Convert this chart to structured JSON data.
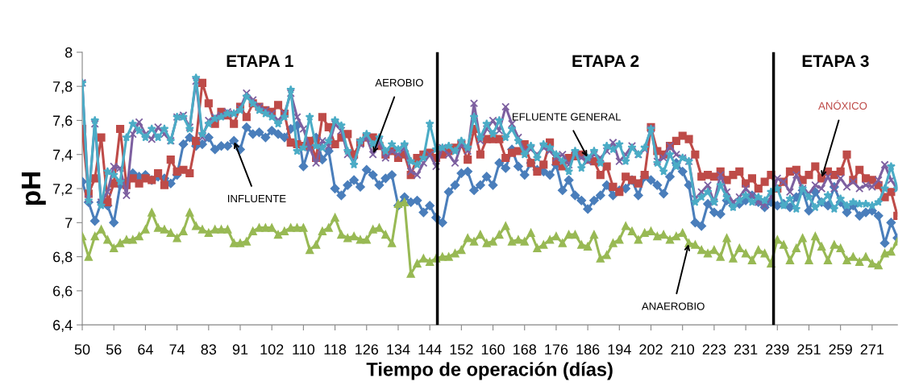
{
  "chart_data": {
    "type": "line",
    "xlabel": "Tiempo de operación (días)",
    "ylabel": "pH",
    "categories": [
      "50",
      null,
      null,
      null,
      null,
      "56",
      null,
      null,
      null,
      null,
      "64",
      null,
      null,
      null,
      null,
      "74",
      null,
      null,
      null,
      null,
      "83",
      null,
      null,
      null,
      null,
      "91",
      null,
      null,
      null,
      null,
      "102",
      null,
      null,
      null,
      null,
      "110",
      null,
      null,
      null,
      null,
      "118",
      null,
      null,
      null,
      null,
      "126",
      null,
      null,
      null,
      null,
      "134",
      null,
      null,
      null,
      null,
      "144",
      null,
      null,
      null,
      null,
      "152",
      null,
      null,
      null,
      null,
      "160",
      null,
      null,
      null,
      null,
      "168",
      null,
      null,
      null,
      null,
      "176",
      null,
      null,
      null,
      null,
      "186",
      null,
      null,
      null,
      null,
      "194",
      null,
      null,
      null,
      null,
      "202",
      null,
      null,
      null,
      null,
      "210",
      null,
      null,
      null,
      null,
      "223",
      null,
      null,
      null,
      null,
      "231",
      null,
      null,
      null,
      null,
      "239",
      null,
      null,
      null,
      null,
      "251",
      null,
      null,
      null,
      null,
      "259",
      null,
      null,
      null,
      null,
      "271",
      null,
      null,
      null,
      null
    ],
    "ylim": [
      6.4,
      8
    ],
    "yticks": [
      {
        "value": 6.4,
        "label": "6,4"
      },
      {
        "value": 6.6,
        "label": "6,6"
      },
      {
        "value": 6.8,
        "label": "6,8"
      },
      {
        "value": 7,
        "label": "7"
      },
      {
        "value": 7.2,
        "label": "7,2"
      },
      {
        "value": 7.4,
        "label": "7,4"
      },
      {
        "value": 7.6,
        "label": "7,6"
      },
      {
        "value": 7.8,
        "label": "7,8"
      },
      {
        "value": 8,
        "label": "8"
      }
    ],
    "grid": false,
    "legend": false,
    "series": [
      {
        "name": "INFLUENTE",
        "color": "#4a7ebb",
        "marker": "diamond",
        "values": [
          7.24,
          7.12,
          7.01,
          7.12,
          7.1,
          7.0,
          7.22,
          7.24,
          7.29,
          7.27,
          7.28,
          7.25,
          7.27,
          7.26,
          7.23,
          7.28,
          7.46,
          7.5,
          7.45,
          7.46,
          7.5,
          7.43,
          7.45,
          7.45,
          7.48,
          7.43,
          7.56,
          7.52,
          7.53,
          7.5,
          7.54,
          7.52,
          7.5,
          7.55,
          7.57,
          7.33,
          7.45,
          7.5,
          7.37,
          7.42,
          7.2,
          7.16,
          7.22,
          7.25,
          7.21,
          7.31,
          7.28,
          7.22,
          7.26,
          7.28,
          7.1,
          7.15,
          7.12,
          7.13,
          7.06,
          7.1,
          7.03,
          7.0,
          7.18,
          7.22,
          7.29,
          7.3,
          7.19,
          7.22,
          7.27,
          7.22,
          7.35,
          7.32,
          7.43,
          7.33,
          7.28,
          7.35,
          7.31,
          7.3,
          7.28,
          7.34,
          7.19,
          7.25,
          7.16,
          7.13,
          7.08,
          7.13,
          7.16,
          7.22,
          7.16,
          7.19,
          7.2,
          7.25,
          7.16,
          7.27,
          7.25,
          7.22,
          7.17,
          7.27,
          7.35,
          7.3,
          7.22,
          7.0,
          6.98,
          7.11,
          7.06,
          7.05,
          7.13,
          7.1,
          7.11,
          7.13,
          7.16,
          7.12,
          7.09,
          7.12,
          7.1,
          7.11,
          7.09,
          7.15,
          7.19,
          7.07,
          7.18,
          7.12,
          7.1,
          7.21,
          7.12,
          7.06,
          7.1,
          7.04,
          7.06,
          7.07,
          7.04,
          6.88,
          7.0,
          6.91
        ]
      },
      {
        "name": "ANÓXICO",
        "color": "#be4b48",
        "marker": "square",
        "values": [
          7.55,
          7.17,
          7.26,
          7.5,
          7.12,
          7.23,
          7.55,
          7.22,
          7.26,
          7.23,
          7.26,
          7.25,
          7.29,
          7.22,
          7.37,
          7.3,
          7.31,
          7.29,
          7.48,
          7.82,
          7.7,
          7.58,
          7.65,
          7.63,
          7.58,
          7.68,
          7.62,
          7.7,
          7.68,
          7.66,
          7.65,
          7.69,
          7.64,
          7.47,
          7.46,
          7.45,
          7.48,
          7.38,
          7.62,
          7.56,
          7.46,
          7.5,
          7.52,
          7.4,
          7.47,
          7.5,
          7.5,
          7.45,
          7.4,
          7.42,
          7.38,
          7.4,
          7.28,
          7.38,
          7.4,
          7.41,
          7.38,
          7.4,
          7.42,
          7.44,
          7.46,
          7.37,
          7.55,
          7.4,
          7.49,
          7.49,
          7.49,
          7.38,
          7.41,
          7.42,
          7.46,
          7.35,
          7.3,
          7.34,
          7.47,
          7.36,
          7.33,
          7.38,
          7.39,
          7.4,
          7.37,
          7.36,
          7.28,
          7.33,
          7.21,
          7.18,
          7.27,
          7.25,
          7.23,
          7.28,
          7.56,
          7.42,
          7.4,
          7.45,
          7.48,
          7.51,
          7.49,
          7.4,
          7.27,
          7.28,
          7.27,
          7.3,
          7.25,
          7.28,
          7.3,
          7.23,
          7.26,
          7.2,
          7.24,
          7.28,
          7.2,
          7.24,
          7.3,
          7.31,
          7.25,
          7.28,
          7.33,
          7.26,
          7.3,
          7.28,
          7.3,
          7.4,
          7.25,
          7.31,
          7.26,
          7.25,
          7.22,
          7.15,
          7.18,
          7.04
        ]
      },
      {
        "name": "ANAEROBIO",
        "color": "#98b954",
        "marker": "triangle",
        "values": [
          6.92,
          6.8,
          6.92,
          6.96,
          6.9,
          6.85,
          6.88,
          6.9,
          6.9,
          6.92,
          6.96,
          7.06,
          6.97,
          6.96,
          6.94,
          6.91,
          6.95,
          7.06,
          6.98,
          6.96,
          6.94,
          6.96,
          6.96,
          6.96,
          6.88,
          6.88,
          6.89,
          6.95,
          6.97,
          6.97,
          6.97,
          6.93,
          6.95,
          6.97,
          6.97,
          6.97,
          6.84,
          6.87,
          6.95,
          6.97,
          7.03,
          6.93,
          6.91,
          6.92,
          6.9,
          6.9,
          6.96,
          6.97,
          6.93,
          6.88,
          7.11,
          7.12,
          6.7,
          6.76,
          6.79,
          6.77,
          6.79,
          6.8,
          6.8,
          6.82,
          6.84,
          6.91,
          6.89,
          6.93,
          6.88,
          6.89,
          6.93,
          6.98,
          6.89,
          6.9,
          6.89,
          6.94,
          6.85,
          6.87,
          6.9,
          6.92,
          6.88,
          6.93,
          6.93,
          6.87,
          6.86,
          6.93,
          6.79,
          6.81,
          6.88,
          6.9,
          6.98,
          6.95,
          6.9,
          6.94,
          6.95,
          6.92,
          6.93,
          6.9,
          6.92,
          6.94,
          6.88,
          6.87,
          6.84,
          6.82,
          6.84,
          6.8,
          6.91,
          6.79,
          6.85,
          6.82,
          6.78,
          6.84,
          6.82,
          6.76,
          6.9,
          6.87,
          6.78,
          6.85,
          6.91,
          6.78,
          6.92,
          6.86,
          6.78,
          6.87,
          6.85,
          6.78,
          6.8,
          6.77,
          6.8,
          6.76,
          6.75,
          6.82,
          6.83,
          6.89
        ]
      },
      {
        "name": "AEROBIO",
        "color": "#7d60a0",
        "marker": "cross",
        "values": [
          7.82,
          7.14,
          7.58,
          7.12,
          7.18,
          7.33,
          7.32,
          7.16,
          7.52,
          7.59,
          7.52,
          7.49,
          7.56,
          7.52,
          7.48,
          7.62,
          7.63,
          7.56,
          7.83,
          7.5,
          7.6,
          7.62,
          7.63,
          7.65,
          7.64,
          7.67,
          7.76,
          7.72,
          7.68,
          7.66,
          7.64,
          7.6,
          7.64,
          7.76,
          7.62,
          7.55,
          7.44,
          7.35,
          7.48,
          7.45,
          7.58,
          7.54,
          7.4,
          7.36,
          7.46,
          7.5,
          7.4,
          7.48,
          7.38,
          7.42,
          7.4,
          7.44,
          7.3,
          7.28,
          7.35,
          7.4,
          7.33,
          7.44,
          7.4,
          7.35,
          7.46,
          7.42,
          7.7,
          7.48,
          7.55,
          7.6,
          7.54,
          7.68,
          7.58,
          7.5,
          7.42,
          7.43,
          7.4,
          7.44,
          7.42,
          7.38,
          7.4,
          7.34,
          7.4,
          7.38,
          7.36,
          7.4,
          7.38,
          7.42,
          7.47,
          7.36,
          7.4,
          7.45,
          7.4,
          7.43,
          7.55,
          7.36,
          7.38,
          7.45,
          7.4,
          7.38,
          7.36,
          7.14,
          7.18,
          7.22,
          7.12,
          7.28,
          7.18,
          7.12,
          7.15,
          7.2,
          7.16,
          7.12,
          7.1,
          7.15,
          7.26,
          7.24,
          7.18,
          7.28,
          7.2,
          7.17,
          7.22,
          7.2,
          7.27,
          7.2,
          7.26,
          7.21,
          7.24,
          7.2,
          7.22,
          7.21,
          7.25,
          7.34,
          7.25,
          7.2
        ]
      },
      {
        "name": "EFLUENTE GENERAL",
        "color": "#4bacc6",
        "marker": "star",
        "values": [
          7.82,
          7.13,
          7.6,
          7.1,
          7.3,
          7.28,
          7.24,
          7.5,
          7.58,
          7.54,
          7.5,
          7.55,
          7.5,
          7.55,
          7.48,
          7.62,
          7.62,
          7.55,
          7.85,
          7.52,
          7.58,
          7.61,
          7.62,
          7.64,
          7.64,
          7.66,
          7.74,
          7.7,
          7.66,
          7.64,
          7.62,
          7.58,
          7.62,
          7.78,
          7.42,
          7.44,
          7.62,
          7.45,
          7.44,
          7.48,
          7.6,
          7.57,
          7.42,
          7.34,
          7.48,
          7.52,
          7.46,
          7.5,
          7.42,
          7.46,
          7.43,
          7.46,
          7.36,
          7.34,
          7.38,
          7.58,
          7.43,
          7.44,
          7.45,
          7.42,
          7.48,
          7.44,
          7.62,
          7.5,
          7.58,
          7.52,
          7.6,
          7.5,
          7.55,
          7.48,
          7.4,
          7.45,
          7.38,
          7.46,
          7.44,
          7.4,
          7.36,
          7.3,
          7.42,
          7.32,
          7.38,
          7.42,
          7.35,
          7.45,
          7.43,
          7.46,
          7.36,
          7.44,
          7.4,
          7.44,
          7.55,
          7.35,
          7.3,
          7.4,
          7.33,
          7.38,
          7.36,
          7.12,
          7.15,
          7.18,
          7.12,
          7.22,
          7.15,
          7.09,
          7.13,
          7.16,
          7.12,
          7.15,
          7.13,
          7.18,
          7.2,
          7.1,
          7.14,
          7.08,
          7.2,
          7.15,
          7.09,
          7.12,
          7.16,
          7.08,
          7.14,
          7.1,
          7.12,
          7.11,
          7.11,
          7.1,
          7.12,
          7.2,
          7.33,
          7.2
        ]
      }
    ],
    "annotations": [
      "ETAPA 1",
      "ETAPA 2",
      "ETAPA 3"
    ]
  }
}
